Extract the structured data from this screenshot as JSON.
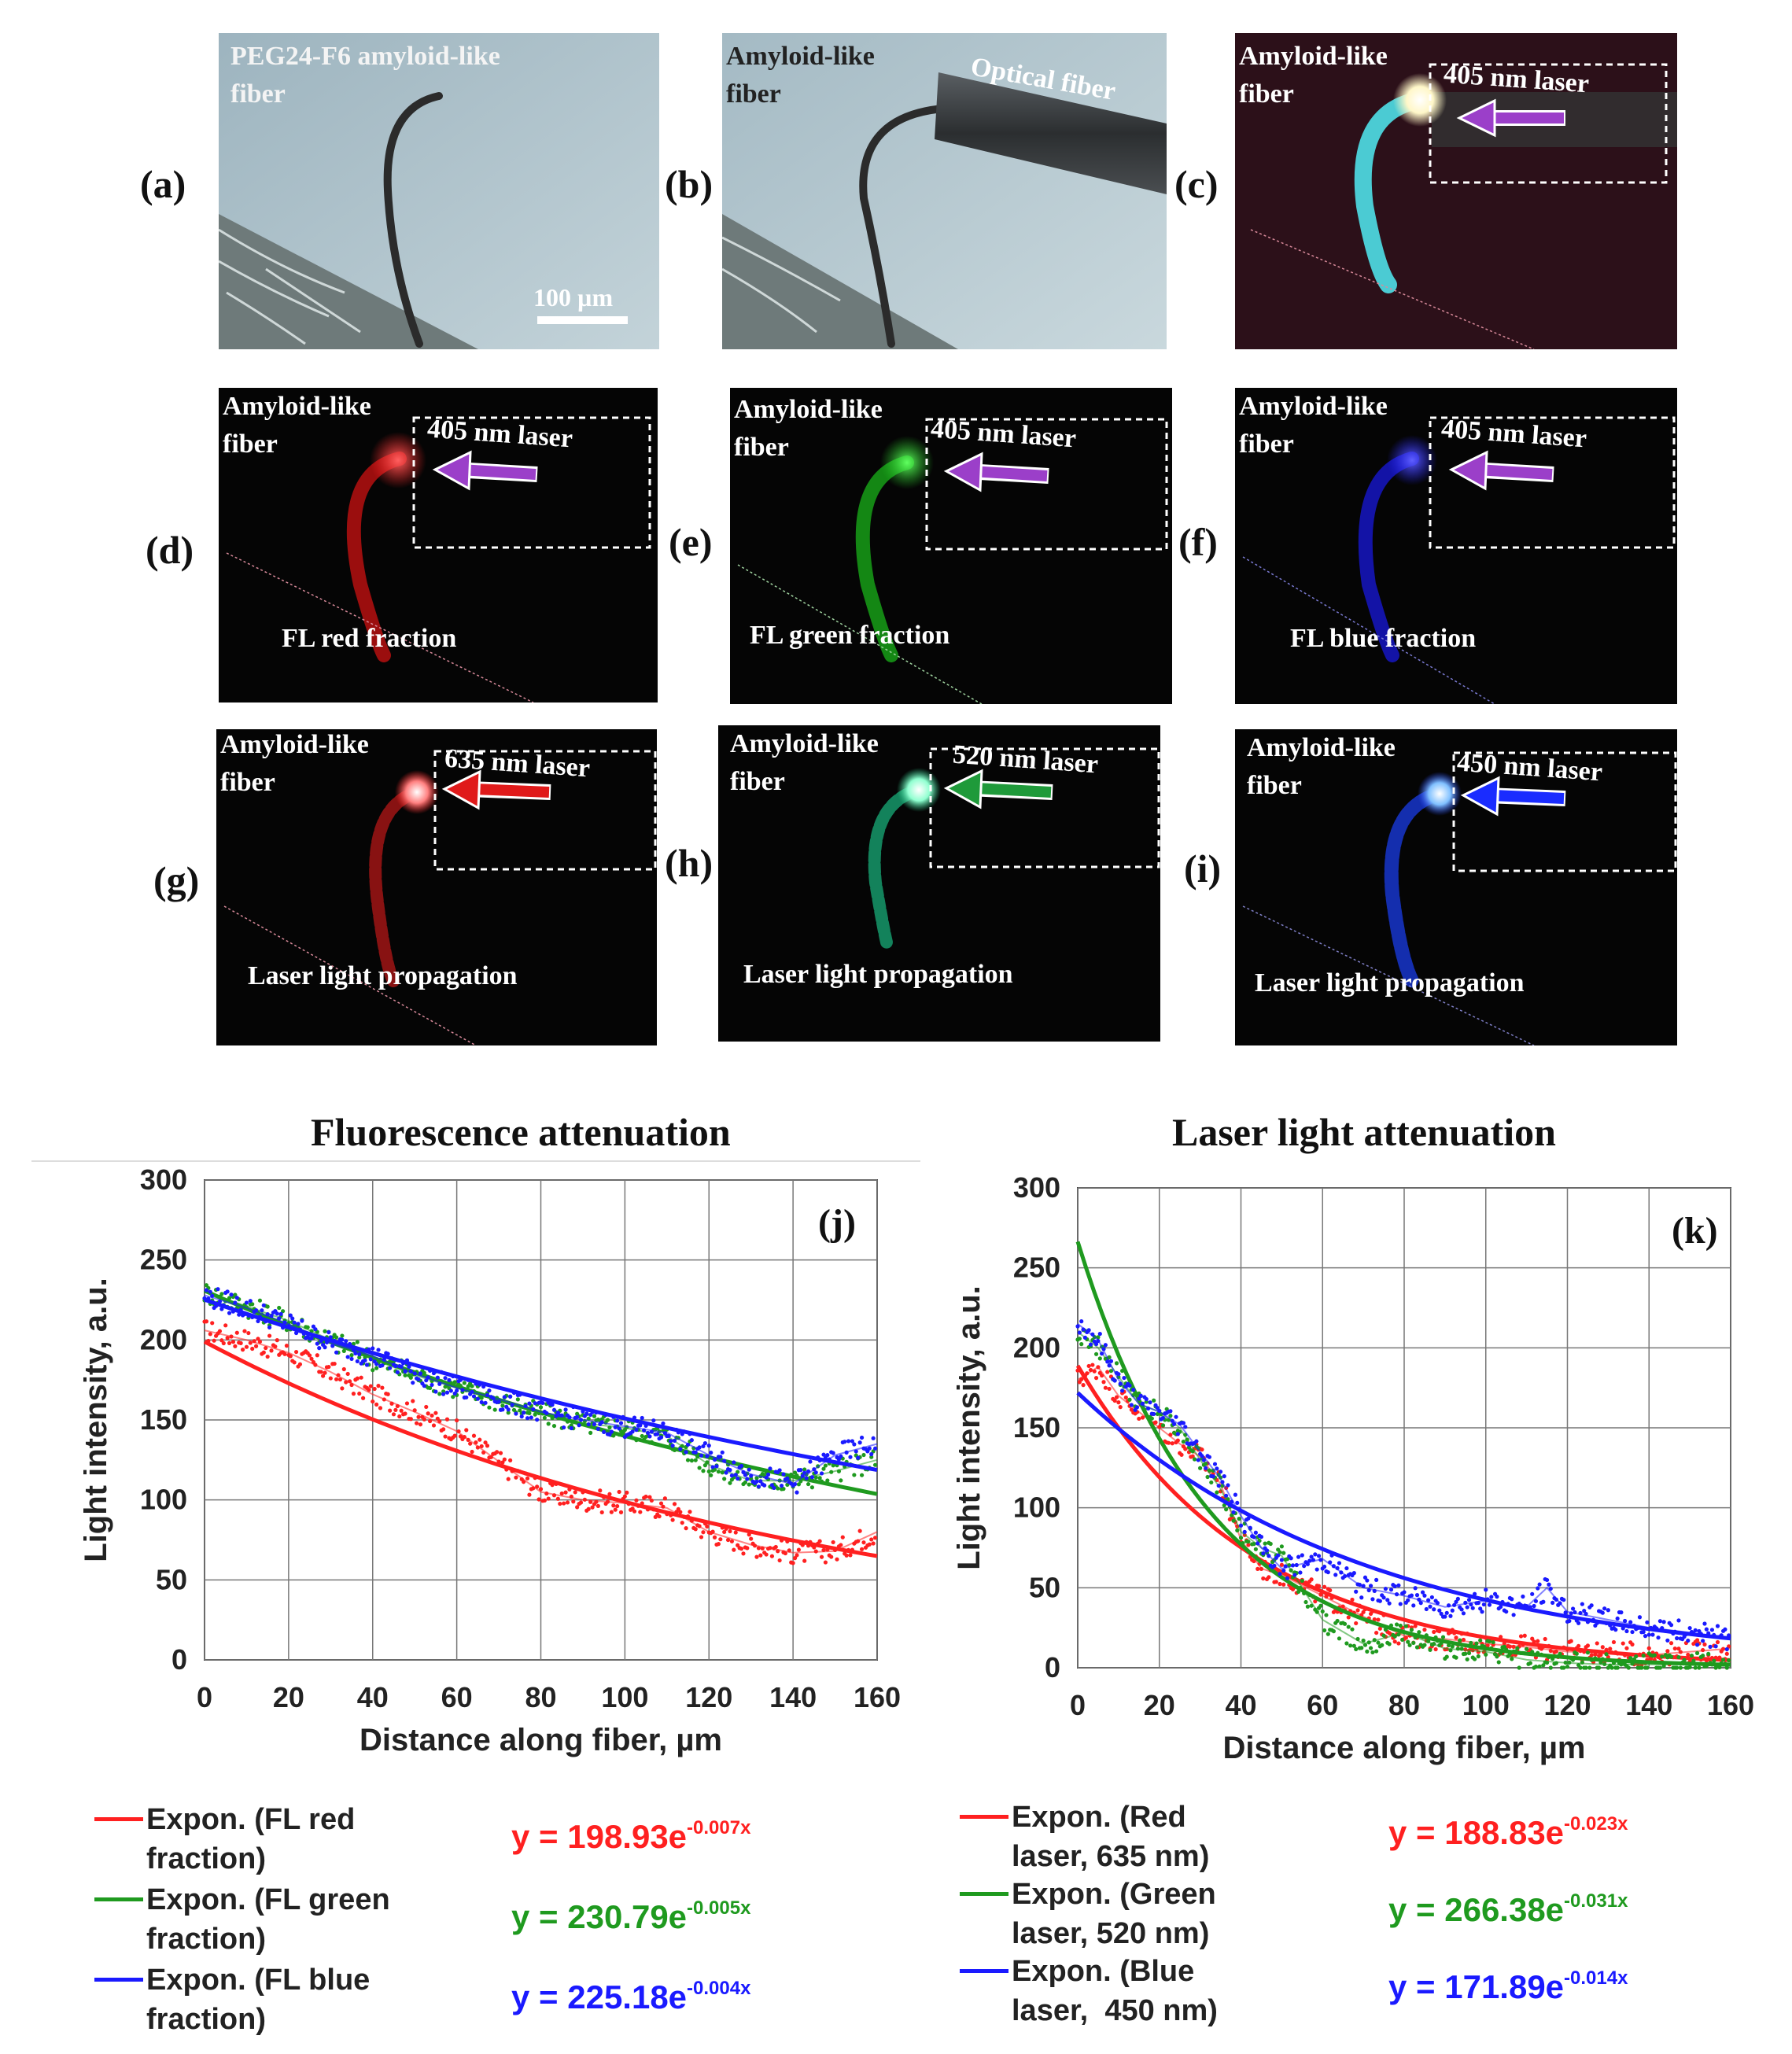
{
  "panels": {
    "a": {
      "label": "(a)",
      "text": [
        "PEG24-F6 amyloid-like",
        "fiber"
      ],
      "scale_bar": "100 µm"
    },
    "b": {
      "label": "(b)",
      "text": [
        "Amyloid-like",
        "fiber"
      ],
      "optical_fiber": "Optical fiber"
    },
    "c": {
      "label": "(c)",
      "text": [
        "Amyloid-like",
        "fiber"
      ],
      "laser": "405 nm laser"
    },
    "d": {
      "label": "(d)",
      "text": [
        "Amyloid-like",
        "fiber"
      ],
      "laser": "405 nm laser",
      "bottom": "FL  red  fraction"
    },
    "e": {
      "label": "(e)",
      "text": [
        "Amyloid-like",
        "fiber"
      ],
      "laser": "405 nm laser",
      "bottom": "FL  green  fraction"
    },
    "f": {
      "label": "(f)",
      "text": [
        "Amyloid-like",
        "fiber"
      ],
      "laser": "405 nm laser",
      "bottom": "FL  blue fraction"
    },
    "g": {
      "label": "(g)",
      "text": [
        "Amyloid-like",
        "fiber"
      ],
      "laser": "635 nm laser",
      "bottom": "Laser light propagation"
    },
    "h": {
      "label": "(h)",
      "text": [
        "Amyloid-like",
        "fiber"
      ],
      "laser": "520 nm laser",
      "bottom": "Laser light propagation"
    },
    "i": {
      "label": "(i)",
      "text": [
        "Amyloid-like",
        "fiber"
      ],
      "laser": "450 nm laser",
      "bottom": "Laser light propagation"
    }
  },
  "colors": {
    "red": "#ff2020",
    "green": "#1f9a1f",
    "blue": "#1a1aff",
    "violet": "#9b3fc9"
  },
  "chart_data": [
    {
      "type": "scatter",
      "panel_label": "(j)",
      "title": "Fluorescence attenuation",
      "xlabel": "Distance along fiber, µm",
      "ylabel": "Light intensity, a.u.",
      "xlim": [
        0,
        160
      ],
      "ylim": [
        0,
        300
      ],
      "xticks": [
        "0",
        "20",
        "40",
        "60",
        "80",
        "100",
        "120",
        "140",
        "160"
      ],
      "yticks": [
        "0",
        "50",
        "100",
        "150",
        "200",
        "250",
        "300"
      ],
      "grid": true,
      "series": [
        {
          "name": "FL red fraction",
          "color": "red",
          "x": [
            0,
            10,
            20,
            30,
            40,
            50,
            60,
            70,
            80,
            90,
            100,
            110,
            120,
            130,
            140,
            150,
            160
          ],
          "y": [
            206,
            200,
            192,
            180,
            166,
            155,
            143,
            124,
            105,
            100,
            98,
            95,
            80,
            72,
            67,
            68,
            80
          ],
          "fit": {
            "a": 198.93,
            "b": -0.007
          }
        },
        {
          "name": "FL green fraction",
          "color": "green",
          "x": [
            0,
            10,
            20,
            30,
            40,
            50,
            60,
            70,
            80,
            90,
            100,
            110,
            120,
            130,
            140,
            150,
            160
          ],
          "y": [
            230,
            221,
            212,
            200,
            188,
            178,
            170,
            162,
            154,
            148,
            145,
            140,
            122,
            112,
            112,
            118,
            125
          ],
          "fit": {
            "a": 230.79,
            "b": -0.005
          }
        },
        {
          "name": "FL blue fraction",
          "color": "blue",
          "x": [
            0,
            10,
            20,
            30,
            40,
            50,
            60,
            70,
            80,
            90,
            100,
            110,
            120,
            130,
            140,
            150,
            160
          ],
          "y": [
            228,
            220,
            210,
            198,
            190,
            179,
            170,
            163,
            155,
            150,
            146,
            142,
            128,
            116,
            110,
            128,
            135
          ],
          "fit": {
            "a": 225.18,
            "b": -0.004
          }
        }
      ],
      "legend": [
        {
          "color": "red",
          "lines": [
            "Expon. (FL red",
            "fraction)"
          ],
          "equation": "y = 198.93e",
          "exponent": "-0.007x"
        },
        {
          "color": "green",
          "lines": [
            "Expon. (FL green",
            "fraction)"
          ],
          "equation": "y = 230.79e",
          "exponent": "-0.005x"
        },
        {
          "color": "blue",
          "lines": [
            "Expon. (FL blue",
            "fraction)"
          ],
          "equation": "y = 225.18e",
          "exponent": "-0.004x"
        }
      ]
    },
    {
      "type": "scatter",
      "panel_label": "(k)",
      "title": "Laser light attenuation",
      "xlabel": "Distance along fiber, µm",
      "ylabel": "Light intensity, a.u.",
      "xlim": [
        0,
        160
      ],
      "ylim": [
        0,
        300
      ],
      "xticks": [
        "0",
        "20",
        "40",
        "60",
        "80",
        "100",
        "120",
        "140",
        "160"
      ],
      "yticks": [
        "0",
        "50",
        "100",
        "150",
        "200",
        "250",
        "300"
      ],
      "grid": true,
      "series": [
        {
          "name": "Red laser, 635 nm",
          "color": "red",
          "x": [
            0,
            5,
            10,
            15,
            20,
            25,
            30,
            35,
            40,
            45,
            50,
            60,
            70,
            80,
            90,
            100,
            110,
            120,
            130,
            140,
            150,
            160
          ],
          "y": [
            180,
            188,
            170,
            160,
            150,
            140,
            132,
            115,
            80,
            62,
            58,
            45,
            32,
            20,
            18,
            15,
            13,
            10,
            10,
            8,
            10,
            12
          ],
          "fit": {
            "a": 188.83,
            "b": -0.023
          }
        },
        {
          "name": "Green laser, 520 nm",
          "color": "green",
          "x": [
            0,
            5,
            10,
            15,
            20,
            25,
            30,
            35,
            40,
            45,
            50,
            60,
            70,
            80,
            90,
            100,
            110,
            120,
            130,
            140,
            150,
            160
          ],
          "y": [
            210,
            200,
            182,
            165,
            160,
            150,
            130,
            112,
            85,
            75,
            70,
            30,
            15,
            22,
            12,
            10,
            5,
            3,
            2,
            2,
            2,
            3
          ],
          "fit": {
            "a": 266.38,
            "b": -0.031
          }
        },
        {
          "name": "Blue laser, 450 nm",
          "color": "blue",
          "x": [
            0,
            5,
            10,
            15,
            20,
            25,
            30,
            35,
            40,
            45,
            50,
            60,
            70,
            80,
            90,
            100,
            110,
            115,
            120,
            130,
            140,
            150,
            160
          ],
          "y": [
            215,
            205,
            180,
            165,
            160,
            152,
            135,
            118,
            95,
            75,
            62,
            68,
            50,
            45,
            38,
            42,
            38,
            50,
            35,
            30,
            25,
            22,
            18
          ],
          "fit": {
            "a": 171.89,
            "b": -0.014
          }
        }
      ],
      "legend": [
        {
          "color": "red",
          "lines": [
            "Expon. (Red",
            "laser, 635 nm)"
          ],
          "equation": "y = 188.83e",
          "exponent": "-0.023x"
        },
        {
          "color": "green",
          "lines": [
            "Expon. (Green",
            "laser, 520 nm)"
          ],
          "equation": "y = 266.38e",
          "exponent": "-0.031x"
        },
        {
          "color": "blue",
          "lines": [
            "Expon. (Blue",
            "laser,  450 nm)"
          ],
          "equation": "y = 171.89e",
          "exponent": "-0.014x"
        }
      ]
    }
  ]
}
